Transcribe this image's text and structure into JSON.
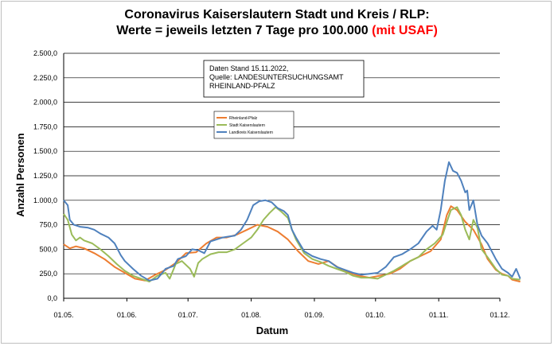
{
  "chart_data": {
    "type": "line",
    "title_line1": "Coronavirus Kaiserslautern Stadt und Kreis / RLP:",
    "title_line2_black": "Werte = jeweils letzten 7 Tage pro 100.000 ",
    "title_line2_red": "(mit USAF)",
    "xlabel": "Datum",
    "ylabel": "Anzahl Personen",
    "ylim": [
      0,
      2500
    ],
    "yticks": [
      "0,0",
      "250,0",
      "500,0",
      "750,0",
      "1.000,0",
      "1.250,0",
      "1.500,0",
      "1.750,0",
      "2.000,0",
      "2.250,0",
      "2.500,0"
    ],
    "xticks": [
      "01.05.",
      "01.06.",
      "01.07.",
      "01.08.",
      "01.09.",
      "01.10.",
      "01.11.",
      "01.12."
    ],
    "x_range_days": [
      0,
      214
    ],
    "grid": true,
    "legend_position": "top-center",
    "annotation": [
      "Daten Stand 15.11.2022,",
      "Quelle: LANDESUNTERSUCHUNGSAMT",
      "RHEINLAND-PFALZ"
    ],
    "series": [
      {
        "name": "Rheinland-Pfalz",
        "color": "#ed7d31",
        "points": [
          [
            0,
            550
          ],
          [
            3,
            510
          ],
          [
            6,
            530
          ],
          [
            10,
            510
          ],
          [
            15,
            460
          ],
          [
            20,
            400
          ],
          [
            25,
            320
          ],
          [
            30,
            260
          ],
          [
            35,
            200
          ],
          [
            40,
            180
          ],
          [
            45,
            240
          ],
          [
            50,
            290
          ],
          [
            55,
            360
          ],
          [
            60,
            460
          ],
          [
            65,
            470
          ],
          [
            70,
            560
          ],
          [
            75,
            620
          ],
          [
            80,
            620
          ],
          [
            85,
            650
          ],
          [
            90,
            700
          ],
          [
            95,
            750
          ],
          [
            100,
            730
          ],
          [
            105,
            680
          ],
          [
            110,
            600
          ],
          [
            115,
            480
          ],
          [
            120,
            380
          ],
          [
            125,
            350
          ],
          [
            130,
            380
          ],
          [
            135,
            310
          ],
          [
            140,
            260
          ],
          [
            145,
            230
          ],
          [
            150,
            210
          ],
          [
            155,
            230
          ],
          [
            160,
            250
          ],
          [
            165,
            300
          ],
          [
            170,
            380
          ],
          [
            175,
            430
          ],
          [
            180,
            480
          ],
          [
            185,
            600
          ],
          [
            188,
            850
          ],
          [
            190,
            940
          ],
          [
            193,
            900
          ],
          [
            197,
            780
          ],
          [
            201,
            700
          ],
          [
            205,
            550
          ],
          [
            208,
            400
          ],
          [
            212,
            290
          ],
          [
            215,
            250
          ],
          [
            218,
            230
          ],
          [
            220,
            190
          ],
          [
            224,
            170
          ]
        ]
      },
      {
        "name": "Stadt Kaiserslautern",
        "color": "#9bbb59",
        "points": [
          [
            0,
            860
          ],
          [
            2,
            800
          ],
          [
            4,
            650
          ],
          [
            6,
            590
          ],
          [
            8,
            620
          ],
          [
            10,
            590
          ],
          [
            14,
            560
          ],
          [
            18,
            500
          ],
          [
            22,
            430
          ],
          [
            26,
            350
          ],
          [
            30,
            280
          ],
          [
            34,
            230
          ],
          [
            38,
            200
          ],
          [
            42,
            170
          ],
          [
            46,
            230
          ],
          [
            50,
            260
          ],
          [
            52,
            200
          ],
          [
            55,
            350
          ],
          [
            58,
            380
          ],
          [
            62,
            300
          ],
          [
            64,
            220
          ],
          [
            66,
            360
          ],
          [
            68,
            400
          ],
          [
            72,
            450
          ],
          [
            76,
            470
          ],
          [
            80,
            470
          ],
          [
            84,
            500
          ],
          [
            88,
            560
          ],
          [
            92,
            620
          ],
          [
            95,
            700
          ],
          [
            98,
            800
          ],
          [
            101,
            870
          ],
          [
            104,
            930
          ],
          [
            107,
            880
          ],
          [
            110,
            820
          ],
          [
            112,
            700
          ],
          [
            114,
            600
          ],
          [
            118,
            460
          ],
          [
            122,
            400
          ],
          [
            126,
            370
          ],
          [
            130,
            330
          ],
          [
            134,
            300
          ],
          [
            138,
            270
          ],
          [
            142,
            230
          ],
          [
            146,
            210
          ],
          [
            150,
            210
          ],
          [
            154,
            200
          ],
          [
            158,
            240
          ],
          [
            162,
            280
          ],
          [
            166,
            330
          ],
          [
            170,
            380
          ],
          [
            174,
            420
          ],
          [
            178,
            500
          ],
          [
            182,
            560
          ],
          [
            186,
            650
          ],
          [
            188,
            780
          ],
          [
            190,
            900
          ],
          [
            193,
            930
          ],
          [
            195,
            850
          ],
          [
            197,
            700
          ],
          [
            199,
            600
          ],
          [
            201,
            800
          ],
          [
            203,
            720
          ],
          [
            205,
            500
          ],
          [
            208,
            420
          ],
          [
            212,
            300
          ],
          [
            215,
            240
          ],
          [
            218,
            230
          ],
          [
            220,
            200
          ],
          [
            224,
            190
          ]
        ]
      },
      {
        "name": "Landkreis Kaiserslautern",
        "color": "#4f81bd",
        "points": [
          [
            0,
            1000
          ],
          [
            2,
            950
          ],
          [
            3,
            800
          ],
          [
            5,
            750
          ],
          [
            8,
            730
          ],
          [
            12,
            720
          ],
          [
            15,
            700
          ],
          [
            18,
            660
          ],
          [
            22,
            620
          ],
          [
            25,
            560
          ],
          [
            28,
            440
          ],
          [
            30,
            380
          ],
          [
            34,
            300
          ],
          [
            38,
            230
          ],
          [
            42,
            180
          ],
          [
            46,
            200
          ],
          [
            50,
            300
          ],
          [
            54,
            330
          ],
          [
            56,
            400
          ],
          [
            60,
            430
          ],
          [
            63,
            500
          ],
          [
            66,
            490
          ],
          [
            69,
            460
          ],
          [
            72,
            580
          ],
          [
            75,
            600
          ],
          [
            78,
            620
          ],
          [
            81,
            630
          ],
          [
            84,
            640
          ],
          [
            87,
            700
          ],
          [
            90,
            800
          ],
          [
            93,
            950
          ],
          [
            96,
            990
          ],
          [
            99,
            1000
          ],
          [
            102,
            980
          ],
          [
            105,
            920
          ],
          [
            108,
            890
          ],
          [
            110,
            850
          ],
          [
            112,
            700
          ],
          [
            114,
            620
          ],
          [
            118,
            480
          ],
          [
            122,
            430
          ],
          [
            126,
            400
          ],
          [
            130,
            380
          ],
          [
            134,
            320
          ],
          [
            138,
            290
          ],
          [
            142,
            260
          ],
          [
            146,
            240
          ],
          [
            150,
            250
          ],
          [
            154,
            260
          ],
          [
            158,
            320
          ],
          [
            162,
            420
          ],
          [
            166,
            450
          ],
          [
            170,
            500
          ],
          [
            174,
            560
          ],
          [
            178,
            680
          ],
          [
            181,
            740
          ],
          [
            183,
            700
          ],
          [
            185,
            900
          ],
          [
            187,
            1200
          ],
          [
            189,
            1390
          ],
          [
            191,
            1300
          ],
          [
            193,
            1280
          ],
          [
            195,
            1200
          ],
          [
            197,
            1080
          ],
          [
            198,
            1100
          ],
          [
            199,
            900
          ],
          [
            201,
            1000
          ],
          [
            203,
            750
          ],
          [
            205,
            640
          ],
          [
            208,
            560
          ],
          [
            212,
            400
          ],
          [
            215,
            300
          ],
          [
            218,
            260
          ],
          [
            220,
            220
          ],
          [
            222,
            300
          ],
          [
            224,
            200
          ]
        ]
      }
    ]
  }
}
